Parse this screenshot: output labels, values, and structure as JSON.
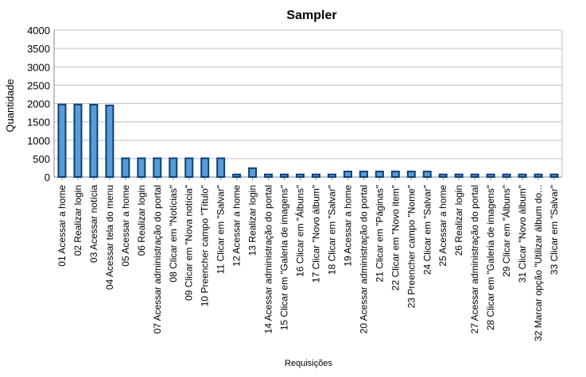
{
  "chart_data": {
    "type": "bar",
    "title": "Sampler",
    "xlabel": "Requisições",
    "ylabel": "Quantidade",
    "ylim": [
      0,
      4000
    ],
    "yticks": [
      0,
      500,
      1000,
      1500,
      2000,
      2500,
      3000,
      3500,
      4000
    ],
    "grid": true,
    "legend": "none",
    "colors": {
      "bar_fill": "#5b9bd5",
      "bar_stroke": "#0d3f7a",
      "grid": "#bfbfbf",
      "axis": "#888888"
    },
    "categories": [
      "01 Acessar a home",
      "02 Realizar login",
      "03 Acessar notícia",
      "04 Acessar tela do menu",
      "05 Acessar a home",
      "06 Realizar login",
      "07 Acessar administração do portal",
      "08 Clicar em \"Notícias\"",
      "09 Clicar em \"Nova notícia\"",
      "10 Preencher campo \"Título\"",
      "11 Clicar em \"Salvar\"",
      "12 Acessar a home",
      "13 Realizar login",
      "14 Acessar administração do portal",
      "15 Clicar em \"Galeria de imagens\"",
      "16 Clicar em \"Álbuns\"",
      "17 Clicar \"Novo álbum\"",
      "18 Clicar em \"Salvar\"",
      "19 Acessar a home",
      "20 Acessar administração do portal",
      "21 Clicar em \"Páginas\"",
      "22 Clicar em \"Novo item\"",
      "23 Preencher campo \"Nome\"",
      "24 Clicar em \"Salvar\"",
      "25 Acessar a home",
      "26 Realizar login",
      "27 Acessar administração do portal",
      "28 Clicar em \"Galeria de imagens\"",
      "29 Clicar em \"Álbuns\"",
      "31 Clicar \"Novo álbum\"",
      "32 Marcar opção \"Utilizar álbum do...",
      "33 Clicar em \"Salvar\""
    ],
    "values": [
      1975,
      1975,
      1970,
      1950,
      510,
      510,
      510,
      510,
      510,
      510,
      510,
      70,
      240,
      70,
      70,
      70,
      70,
      70,
      150,
      150,
      150,
      150,
      150,
      150,
      70,
      70,
      70,
      70,
      70,
      70,
      70,
      70
    ]
  }
}
